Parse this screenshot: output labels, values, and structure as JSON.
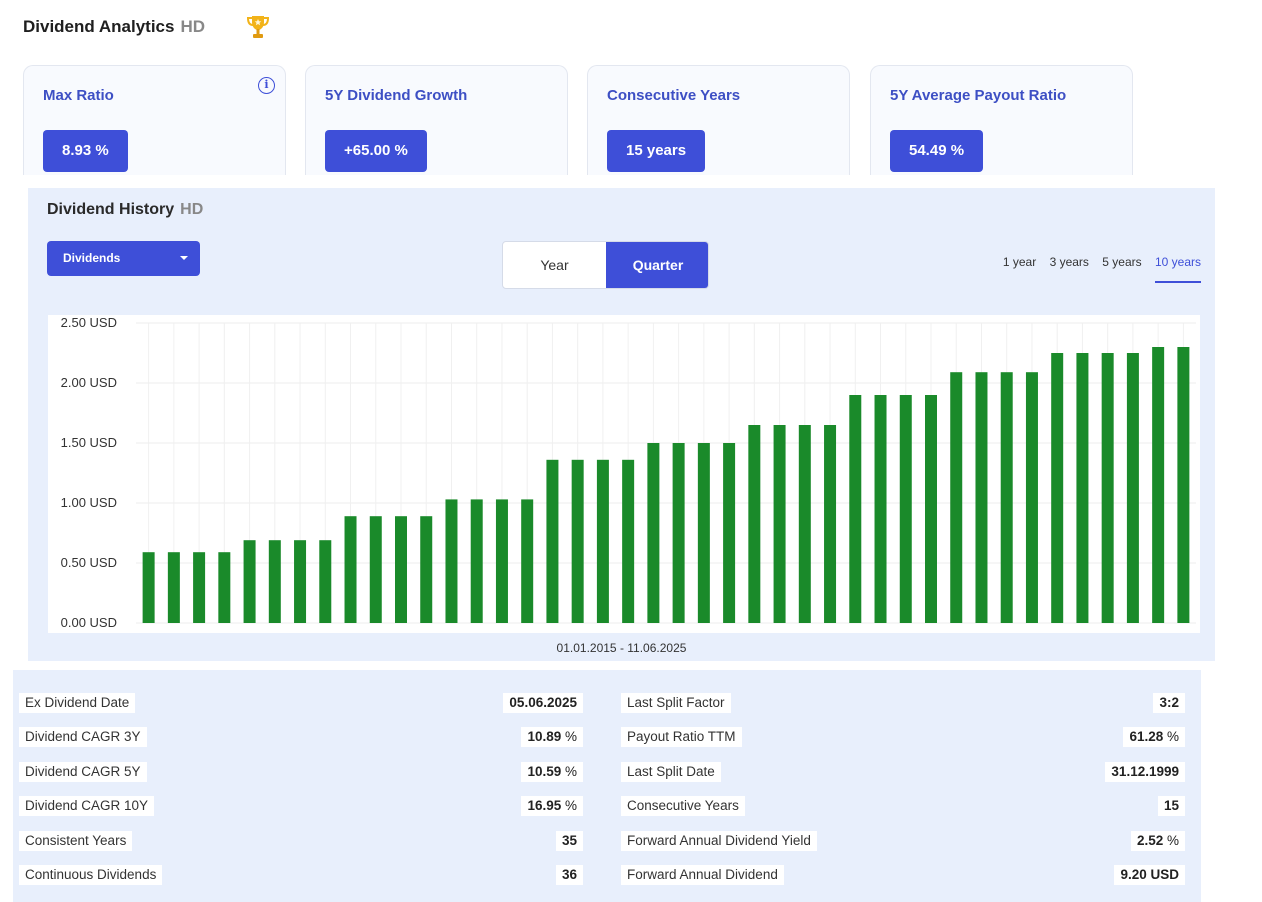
{
  "analytics": {
    "title": "Dividend Analytics",
    "ticker": "HD",
    "trophy_icon": "trophy-icon",
    "cards": [
      {
        "label": "Max Ratio",
        "value": "8.93 %",
        "info": "i"
      },
      {
        "label": "5Y Dividend Growth",
        "value": "+65.00 %"
      },
      {
        "label": "Consecutive Years",
        "value": "15 years"
      },
      {
        "label": "5Y Average Payout Ratio",
        "value": "54.49 %"
      }
    ]
  },
  "history": {
    "title": "Dividend History",
    "ticker": "HD",
    "dropdown": "Dividends",
    "toggle": {
      "year": "Year",
      "quarter": "Quarter",
      "selected": "Quarter"
    },
    "ranges": [
      "1 year",
      "3 years",
      "5 years",
      "10 years"
    ],
    "selected_range": "10 years",
    "date_range": "01.01.2015 - 11.06.2025"
  },
  "chart_data": {
    "type": "bar",
    "ylim": [
      0,
      2.5
    ],
    "y_ticks": [
      "0.00 USD",
      "0.50 USD",
      "1.00 USD",
      "1.50 USD",
      "2.00 USD",
      "2.50 USD"
    ],
    "color": "#1a8a2a",
    "grid": true,
    "values": [
      0.59,
      0.59,
      0.59,
      0.59,
      0.69,
      0.69,
      0.69,
      0.69,
      0.89,
      0.89,
      0.89,
      0.89,
      1.03,
      1.03,
      1.03,
      1.03,
      1.36,
      1.36,
      1.36,
      1.36,
      1.5,
      1.5,
      1.5,
      1.5,
      1.65,
      1.65,
      1.65,
      1.65,
      1.9,
      1.9,
      1.9,
      1.9,
      2.09,
      2.09,
      2.09,
      2.09,
      2.25,
      2.25,
      2.25,
      2.25,
      2.3,
      2.3
    ]
  },
  "stats": {
    "left": [
      {
        "label": "Ex Dividend Date",
        "value": "05.06.2025",
        "unit": ""
      },
      {
        "label": "Dividend CAGR 3Y",
        "value": "10.89",
        "unit": " %"
      },
      {
        "label": "Dividend CAGR 5Y",
        "value": "10.59",
        "unit": " %"
      },
      {
        "label": "Dividend CAGR 10Y",
        "value": "16.95",
        "unit": " %"
      },
      {
        "label": "Consistent Years",
        "value": "35",
        "unit": ""
      },
      {
        "label": "Continuous Dividends",
        "value": "36",
        "unit": ""
      }
    ],
    "right": [
      {
        "label": "Last Split Factor",
        "value": "3:2",
        "unit": ""
      },
      {
        "label": "Payout Ratio TTM",
        "value": "61.28",
        "unit": " %"
      },
      {
        "label": "Last Split Date",
        "value": "31.12.1999",
        "unit": ""
      },
      {
        "label": "Consecutive Years",
        "value": "15",
        "unit": ""
      },
      {
        "label": "Forward Annual Dividend Yield",
        "value": "2.52",
        "unit": " %"
      },
      {
        "label": "Forward Annual Dividend",
        "value": "9.20 USD",
        "unit": ""
      }
    ]
  }
}
